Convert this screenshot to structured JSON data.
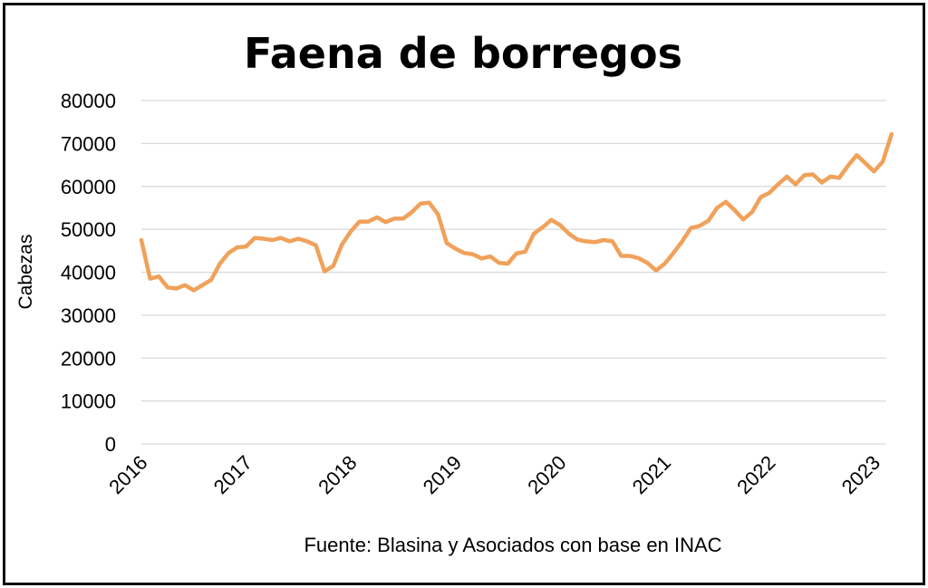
{
  "chart_data": {
    "type": "line",
    "title": "Faena de borregos",
    "ylabel": "Cabezas",
    "xlabel": "",
    "source": "Fuente: Blasina y Asociados con base en INAC",
    "ylim": [
      0,
      80000
    ],
    "yticks": [
      0,
      10000,
      20000,
      30000,
      40000,
      50000,
      60000,
      70000,
      80000
    ],
    "xticks": [
      "2016",
      "2017",
      "2018",
      "2019",
      "2020",
      "2021",
      "2022",
      "2023"
    ],
    "grid": true,
    "legend": "none",
    "color": "#F0A15A",
    "x_unit": "month, starting January 2016",
    "series": [
      {
        "values": [
          47500,
          38500,
          39000,
          36500,
          36200,
          37000,
          35800,
          37000,
          38200,
          42000,
          44500,
          45800,
          46000,
          48000,
          47800,
          47500,
          48000,
          47200,
          47800,
          47200,
          46300,
          40200,
          41500,
          46500,
          49500,
          51800,
          51800,
          52800,
          51700,
          52500,
          52500,
          54000,
          56000,
          56200,
          53500,
          46800,
          45500,
          44500,
          44200,
          43200,
          43700,
          42200,
          42000,
          44400,
          44800,
          49000,
          50500,
          52200,
          51000,
          49000,
          47600,
          47200,
          47000,
          47500,
          47200,
          43800,
          43800,
          43300,
          42200,
          40400,
          42000,
          44500,
          47200,
          50300,
          50800,
          52000,
          55000,
          56400,
          54500,
          52300,
          54000,
          57500,
          58500,
          60500,
          62300,
          60500,
          62600,
          62800,
          60900,
          62300,
          62000,
          64800,
          67300,
          65400,
          63500,
          65800,
          72200
        ]
      }
    ]
  }
}
